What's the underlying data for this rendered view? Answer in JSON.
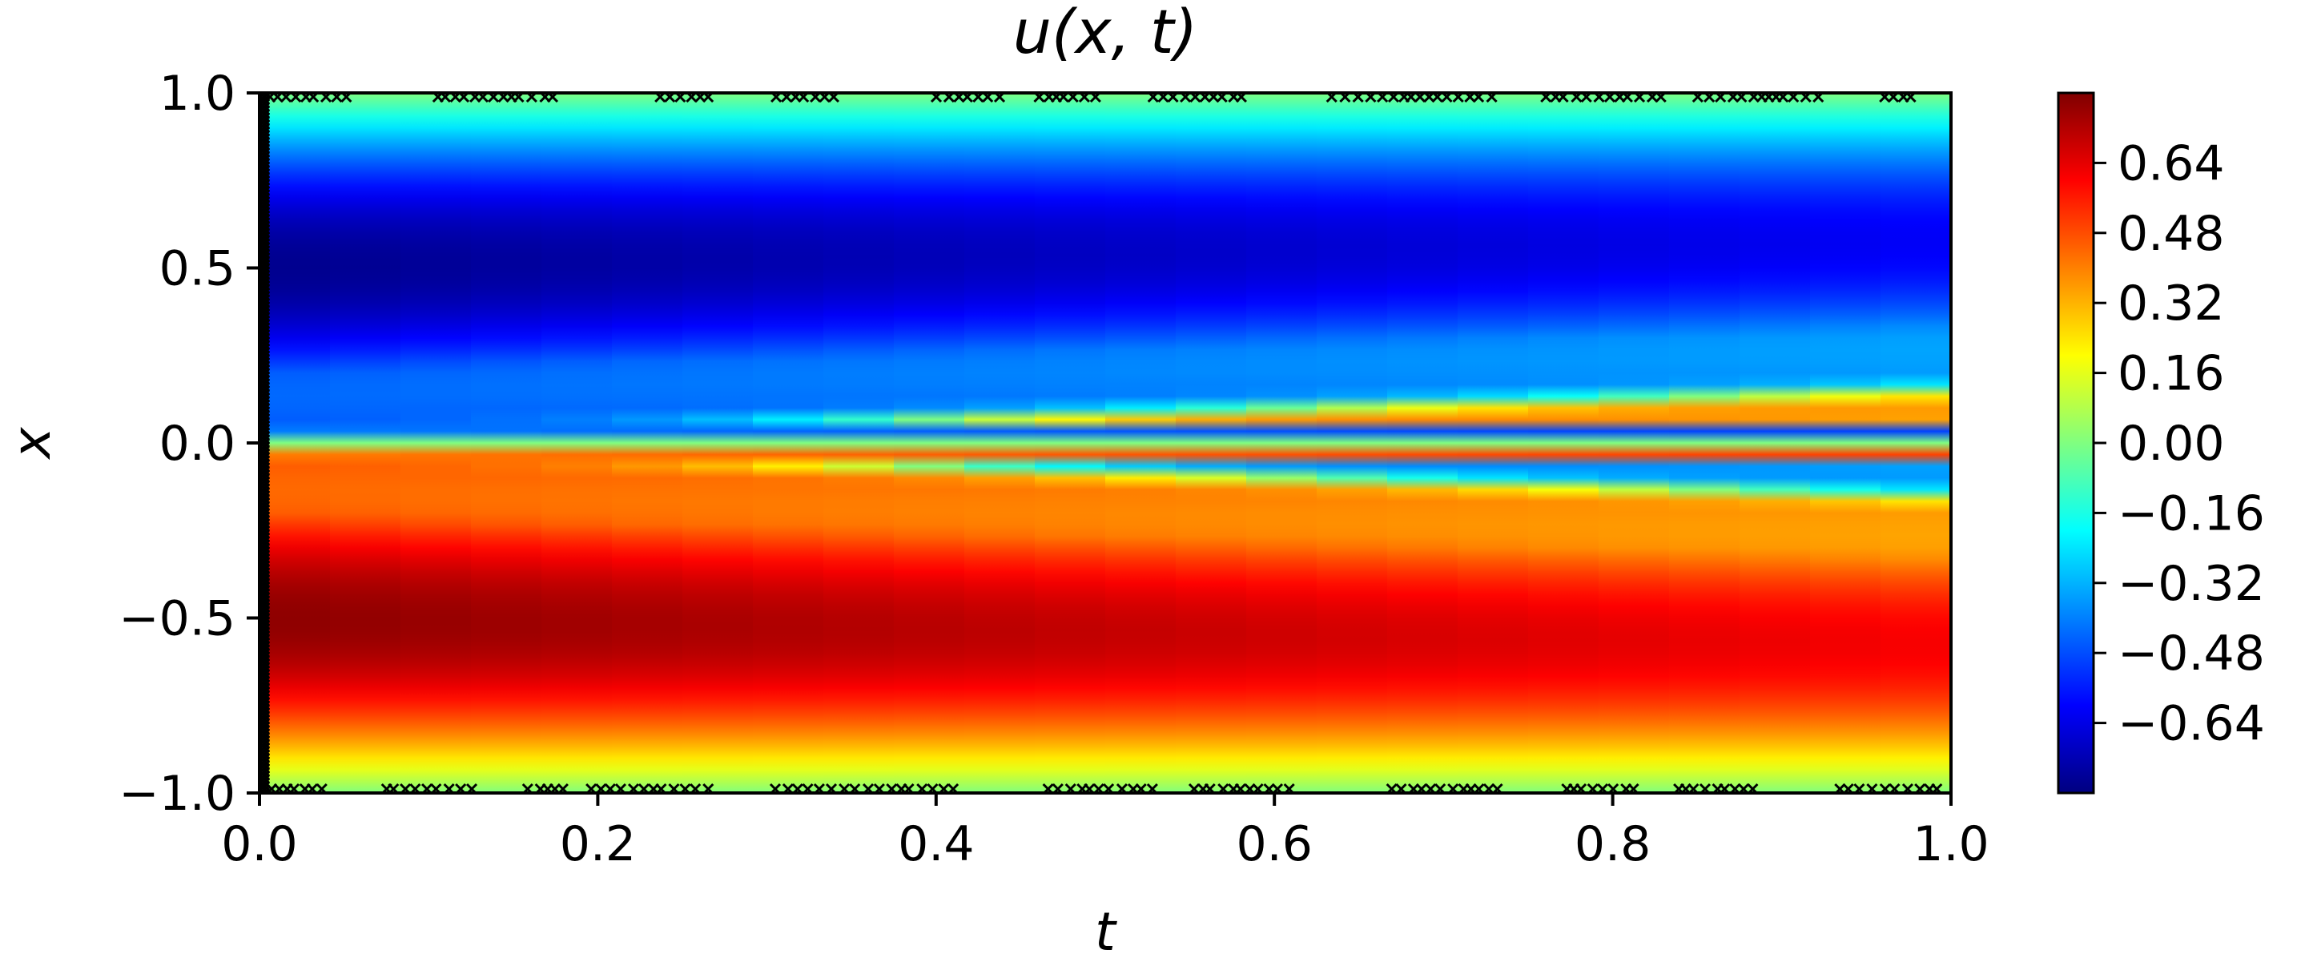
{
  "chart_data": {
    "type": "heatmap",
    "title": "u(x, t)",
    "xlabel": "t",
    "ylabel": "x",
    "xlim": [
      0.0,
      1.0
    ],
    "ylim": [
      -1.0,
      1.0
    ],
    "x_ticks": [
      {
        "value": 0.0,
        "label": "0.0"
      },
      {
        "value": 0.2,
        "label": "0.2"
      },
      {
        "value": 0.4,
        "label": "0.4"
      },
      {
        "value": 0.6,
        "label": "0.6"
      },
      {
        "value": 0.8,
        "label": "0.8"
      },
      {
        "value": 1.0,
        "label": "1.0"
      }
    ],
    "y_ticks": [
      {
        "value": 1.0,
        "label": "1.0"
      },
      {
        "value": 0.5,
        "label": "0.5"
      },
      {
        "value": 0.0,
        "label": "0.0"
      },
      {
        "value": -0.5,
        "label": "−0.5"
      },
      {
        "value": -1.0,
        "label": "−1.0"
      }
    ],
    "colormap": "jet",
    "color_range": [
      -0.8,
      0.8
    ],
    "colorbar_ticks": [
      {
        "value": 0.64,
        "label": "0.64"
      },
      {
        "value": 0.48,
        "label": "0.48"
      },
      {
        "value": 0.32,
        "label": "0.32"
      },
      {
        "value": 0.16,
        "label": "0.16"
      },
      {
        "value": 0.0,
        "label": "0.00"
      },
      {
        "value": -0.16,
        "label": "−0.16"
      },
      {
        "value": -0.32,
        "label": "−0.32"
      },
      {
        "value": -0.48,
        "label": "−0.48"
      },
      {
        "value": -0.64,
        "label": "−0.64"
      }
    ],
    "field": "u(x, t) ≈ −sin(πx) with a sharp front at x = 0 steepening over time",
    "training_points": {
      "marker": "x",
      "color": "#000000",
      "initial_boundary_t": 0.0,
      "top_boundary_x": 1.0,
      "bottom_boundary_x": -1.0
    }
  }
}
